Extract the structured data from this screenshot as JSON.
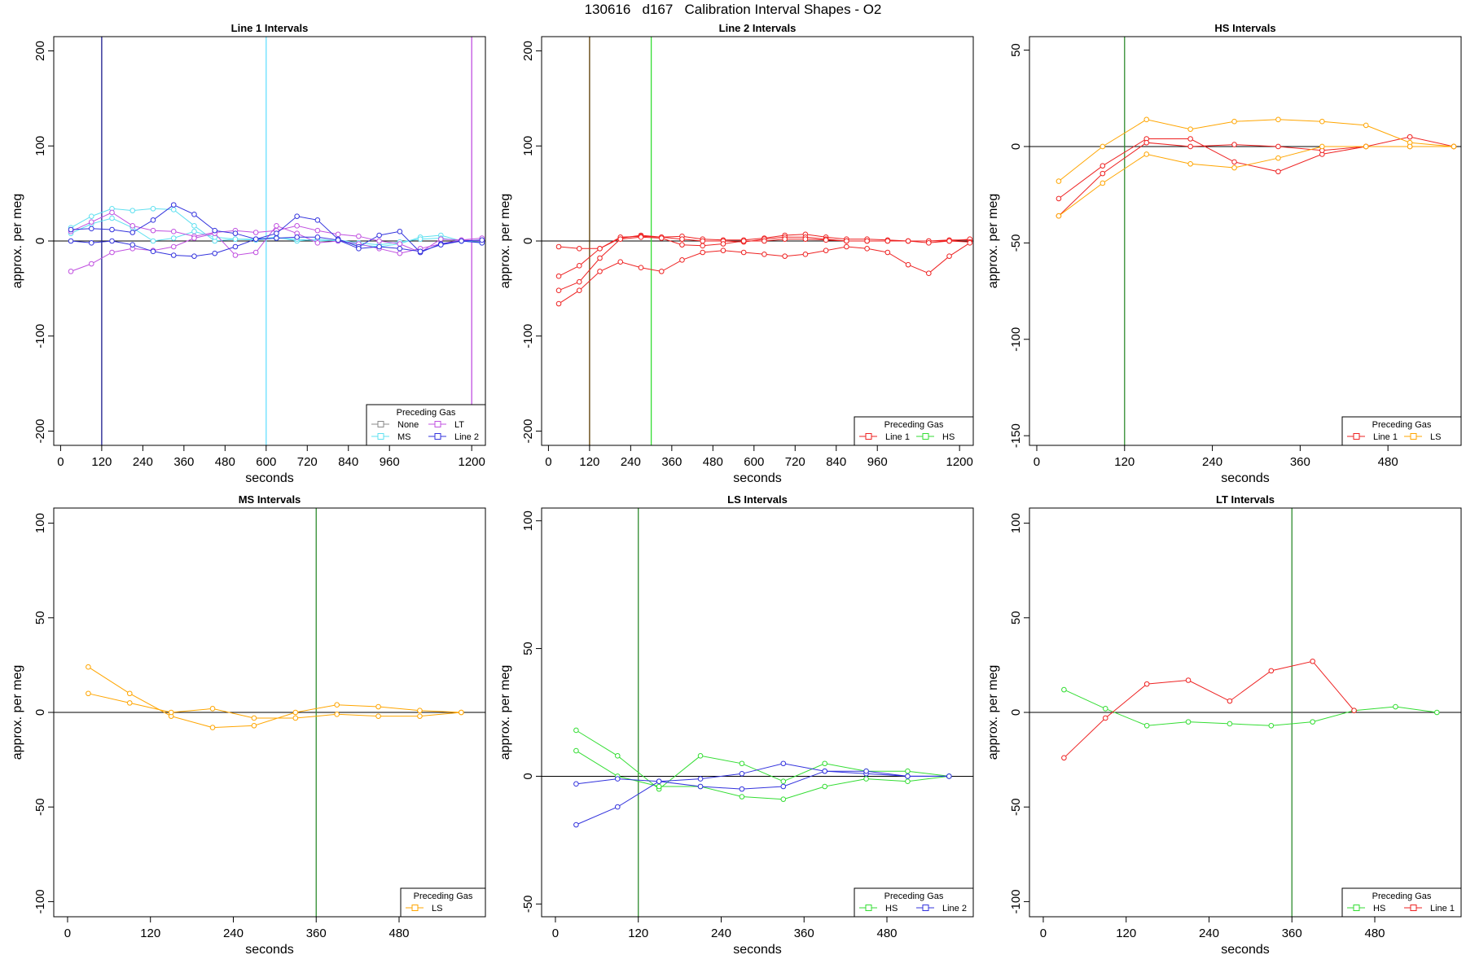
{
  "page": {
    "title": "130616   d167   Calibration Interval Shapes - O2"
  },
  "chart_data": [
    {
      "type": "line",
      "title": "Line 1 Intervals",
      "xlabel": "seconds",
      "ylabel": "approx. per meg",
      "xlim": [
        -20,
        1240
      ],
      "ylim": [
        -215,
        215
      ],
      "xticks": [
        0,
        120,
        240,
        360,
        480,
        600,
        720,
        840,
        960,
        1200
      ],
      "yticks": [
        -200,
        -100,
        0,
        100,
        200
      ],
      "hline": 0,
      "vlines": [
        {
          "x": 120,
          "color": "#1a1a8c"
        },
        {
          "x": 600,
          "color": "#66e0ff"
        },
        {
          "x": 1200,
          "color": "#c050e0"
        }
      ],
      "legend": {
        "title": "Preceding Gas",
        "position": "bottom-right",
        "columns": 2,
        "entries": [
          {
            "name": "None",
            "color": "#888888"
          },
          {
            "name": "LT",
            "color": "#c050e0"
          },
          {
            "name": "MS",
            "color": "#5fe0f0"
          },
          {
            "name": "Line 2",
            "color": "#3333dd"
          }
        ]
      },
      "series": [
        {
          "color": "#5fe0f0",
          "x": [
            30,
            90,
            150,
            210,
            270,
            330,
            390,
            450,
            510,
            570,
            630,
            690,
            750,
            810,
            870,
            930,
            990,
            1050,
            1110,
            1170,
            1230
          ],
          "values": [
            14,
            26,
            34,
            32,
            34,
            33,
            16,
            0,
            2,
            2,
            4,
            0,
            2,
            0,
            -4,
            -6,
            -3,
            4,
            6,
            0,
            -2
          ]
        },
        {
          "color": "#5fe0f0",
          "x": [
            30,
            90,
            150,
            210,
            270,
            330,
            390,
            450,
            510,
            570,
            630,
            690,
            750,
            810,
            870,
            930,
            990,
            1050,
            1110,
            1170,
            1230
          ],
          "values": [
            8,
            18,
            24,
            14,
            0,
            3,
            10,
            4,
            2,
            1,
            3,
            2,
            0,
            1,
            -2,
            -4,
            -1,
            2,
            3,
            0,
            -1
          ]
        },
        {
          "color": "#c050e0",
          "x": [
            30,
            90,
            150,
            210,
            270,
            330,
            390,
            450,
            510,
            570,
            630,
            690,
            750,
            810,
            870,
            930,
            990,
            1050,
            1110,
            1170,
            1230
          ],
          "values": [
            10,
            20,
            30,
            16,
            11,
            10,
            5,
            9,
            11,
            9,
            11,
            16,
            11,
            7,
            5,
            0,
            -3,
            -12,
            2,
            1,
            3
          ]
        },
        {
          "color": "#c050e0",
          "x": [
            30,
            90,
            150,
            210,
            270,
            330,
            390,
            450,
            510,
            570,
            630,
            690,
            750,
            810,
            870,
            930,
            990,
            1050,
            1110,
            1170,
            1230
          ],
          "values": [
            -32,
            -24,
            -12,
            -8,
            -10,
            -6,
            3,
            8,
            -15,
            -12,
            16,
            8,
            -2,
            0,
            -3,
            -8,
            -13,
            -8,
            -3,
            1,
            0
          ]
        },
        {
          "color": "#3333dd",
          "x": [
            30,
            90,
            150,
            210,
            270,
            330,
            390,
            450,
            510,
            570,
            630,
            690,
            750,
            810,
            870,
            930,
            990,
            1050,
            1110,
            1170,
            1230
          ],
          "values": [
            12,
            13,
            12,
            9,
            22,
            38,
            28,
            11,
            8,
            2,
            8,
            26,
            22,
            2,
            -6,
            6,
            10,
            -12,
            -3,
            0,
            -2
          ]
        },
        {
          "color": "#3333dd",
          "x": [
            30,
            90,
            150,
            210,
            270,
            330,
            390,
            450,
            510,
            570,
            630,
            690,
            750,
            810,
            870,
            930,
            990,
            1050,
            1110,
            1170,
            1230
          ],
          "values": [
            0,
            -2,
            0,
            -4,
            -11,
            -15,
            -16,
            -13,
            -6,
            2,
            3,
            4,
            4,
            1,
            -8,
            -6,
            -8,
            -11,
            -4,
            0,
            1
          ]
        }
      ]
    },
    {
      "type": "line",
      "title": "Line 2 Intervals",
      "xlabel": "seconds",
      "ylabel": "approx. per meg",
      "xlim": [
        -20,
        1240
      ],
      "ylim": [
        -215,
        215
      ],
      "xticks": [
        0,
        120,
        240,
        360,
        480,
        600,
        720,
        840,
        960,
        1200
      ],
      "yticks": [
        -200,
        -100,
        0,
        100,
        200
      ],
      "hline": 0,
      "vlines": [
        {
          "x": 120,
          "color": "#5a3a00"
        },
        {
          "x": 300,
          "color": "#33dd33"
        }
      ],
      "legend": {
        "title": "Preceding Gas",
        "position": "bottom-right",
        "columns": 2,
        "entries": [
          {
            "name": "Line 1",
            "color": "#ee2222"
          },
          {
            "name": "HS",
            "color": "#33dd33"
          }
        ]
      },
      "series": [
        {
          "color": "#ee2222",
          "x": [
            30,
            90,
            150,
            210,
            270,
            330,
            390,
            450,
            510,
            570,
            630,
            690,
            750,
            810,
            870,
            930,
            990,
            1050,
            1110,
            1170,
            1230
          ],
          "values": [
            -6,
            -8,
            -8,
            3,
            6,
            4,
            5,
            2,
            1,
            1,
            3,
            6,
            7,
            4,
            2,
            2,
            1,
            0,
            0,
            1,
            1
          ]
        },
        {
          "color": "#ee2222",
          "x": [
            30,
            90,
            150,
            210,
            270,
            330,
            390,
            450,
            510,
            570,
            630,
            690,
            750,
            810,
            870,
            930,
            990,
            1050,
            1110,
            1170,
            1230
          ],
          "values": [
            -37,
            -26,
            -8,
            4,
            5,
            4,
            2,
            0,
            0,
            -1,
            2,
            4,
            4,
            2,
            0,
            0,
            0,
            0,
            0,
            0,
            2
          ]
        },
        {
          "color": "#ee2222",
          "x": [
            30,
            90,
            150,
            210,
            270,
            330,
            390,
            450,
            510,
            570,
            630,
            690,
            750,
            810,
            870,
            930,
            990,
            1050,
            1110,
            1170,
            1230
          ],
          "values": [
            -52,
            -43,
            -18,
            2,
            4,
            3,
            -4,
            -5,
            -3,
            0,
            0,
            2,
            2,
            1,
            0,
            0,
            0,
            0,
            -2,
            0,
            -1
          ]
        },
        {
          "color": "#ee2222",
          "x": [
            30,
            90,
            150,
            210,
            270,
            330,
            390,
            450,
            510,
            570,
            630,
            690,
            750,
            810,
            870,
            930,
            990,
            1050,
            1110,
            1170,
            1230
          ],
          "values": [
            -66,
            -52,
            -32,
            -22,
            -28,
            -32,
            -20,
            -12,
            -10,
            -12,
            -14,
            -16,
            -14,
            -10,
            -6,
            -8,
            -12,
            -25,
            -34,
            -16,
            -2
          ]
        }
      ]
    },
    {
      "type": "line",
      "title": "HS Intervals",
      "xlabel": "seconds",
      "ylabel": "approx. per meg",
      "xlim": [
        -10,
        580
      ],
      "ylim": [
        -155,
        57
      ],
      "xticks": [
        0,
        120,
        240,
        360,
        480
      ],
      "yticks": [
        -150,
        -100,
        -50,
        0,
        50
      ],
      "hline": 0,
      "vlines": [
        {
          "x": 120,
          "color": "#2e8b2e"
        }
      ],
      "legend": {
        "title": "Preceding Gas",
        "position": "bottom-right",
        "columns": 2,
        "entries": [
          {
            "name": "Line 1",
            "color": "#ee2222"
          },
          {
            "name": "LS",
            "color": "#ffa500"
          }
        ]
      },
      "series": [
        {
          "color": "#ee2222",
          "x": [
            30,
            90,
            150,
            210,
            270,
            330,
            390,
            450,
            510,
            570
          ],
          "values": [
            -27,
            -10,
            4,
            4,
            -8,
            -13,
            -4,
            0,
            5,
            0
          ]
        },
        {
          "color": "#ee2222",
          "x": [
            30,
            90,
            150,
            210,
            270,
            330,
            390,
            450,
            510,
            570
          ],
          "values": [
            -36,
            -14,
            2,
            0,
            1,
            0,
            -2,
            0,
            0,
            0
          ]
        },
        {
          "color": "#ffa500",
          "x": [
            30,
            90,
            150,
            210,
            270,
            330,
            390,
            450,
            510,
            570
          ],
          "values": [
            -18,
            0,
            14,
            9,
            13,
            14,
            13,
            11,
            2,
            0
          ]
        },
        {
          "color": "#ffa500",
          "x": [
            30,
            90,
            150,
            210,
            270,
            330,
            390,
            450,
            510,
            570
          ],
          "values": [
            -36,
            -19,
            -4,
            -9,
            -11,
            -6,
            0,
            0,
            0,
            0
          ]
        }
      ]
    },
    {
      "type": "line",
      "title": "MS Intervals",
      "xlabel": "seconds",
      "ylabel": "approx. per meg",
      "xlim": [
        -20,
        605
      ],
      "ylim": [
        -108,
        108
      ],
      "xticks": [
        0,
        120,
        240,
        360,
        480
      ],
      "yticks": [
        -100,
        -50,
        0,
        50,
        100
      ],
      "hline": 0,
      "vlines": [
        {
          "x": 360,
          "color": "#2e8b2e"
        }
      ],
      "legend": {
        "title": "Preceding Gas",
        "position": "bottom-right",
        "columns": 1,
        "entries": [
          {
            "name": "LS",
            "color": "#ffa500"
          }
        ]
      },
      "series": [
        {
          "color": "#ffa500",
          "x": [
            30,
            90,
            150,
            210,
            270,
            330,
            390,
            450,
            510,
            570
          ],
          "values": [
            24,
            10,
            -2,
            -8,
            -7,
            0,
            4,
            3,
            1,
            0
          ]
        },
        {
          "color": "#ffa500",
          "x": [
            30,
            90,
            150,
            210,
            270,
            330,
            390,
            450,
            510,
            570
          ],
          "values": [
            10,
            5,
            0,
            2,
            -3,
            -3,
            -1,
            -2,
            -2,
            0
          ]
        }
      ]
    },
    {
      "type": "line",
      "title": "LS Intervals",
      "xlabel": "seconds",
      "ylabel": "approx. per meg",
      "xlim": [
        -20,
        605
      ],
      "ylim": [
        -55,
        105
      ],
      "xticks": [
        0,
        120,
        240,
        360,
        480
      ],
      "yticks": [
        -50,
        0,
        50,
        100
      ],
      "hline": 0,
      "vlines": [
        {
          "x": 120,
          "color": "#2e8b2e"
        }
      ],
      "legend": {
        "title": "Preceding Gas",
        "position": "bottom-right",
        "columns": 2,
        "entries": [
          {
            "name": "HS",
            "color": "#33dd33"
          },
          {
            "name": "Line 2",
            "color": "#3333dd"
          }
        ]
      },
      "series": [
        {
          "color": "#33dd33",
          "x": [
            30,
            90,
            150,
            210,
            270,
            330,
            390,
            450,
            510,
            570
          ],
          "values": [
            18,
            8,
            -5,
            8,
            5,
            -2,
            5,
            2,
            2,
            0
          ]
        },
        {
          "color": "#33dd33",
          "x": [
            30,
            90,
            150,
            210,
            270,
            330,
            390,
            450,
            510,
            570
          ],
          "values": [
            10,
            0,
            -4,
            -4,
            -8,
            -9,
            -4,
            -1,
            -2,
            0
          ]
        },
        {
          "color": "#3333dd",
          "x": [
            30,
            90,
            150,
            210,
            270,
            330,
            390,
            450,
            510,
            570
          ],
          "values": [
            -3,
            -1,
            -2,
            -1,
            1,
            5,
            2,
            1,
            0,
            0
          ]
        },
        {
          "color": "#3333dd",
          "x": [
            30,
            90,
            150,
            210,
            270,
            330,
            390,
            450,
            510,
            570
          ],
          "values": [
            -19,
            -12,
            -2,
            -4,
            -5,
            -4,
            2,
            2,
            0,
            0
          ]
        }
      ]
    },
    {
      "type": "line",
      "title": "LT Intervals",
      "xlabel": "seconds",
      "ylabel": "approx. per meg",
      "xlim": [
        -20,
        605
      ],
      "ylim": [
        -108,
        108
      ],
      "xticks": [
        0,
        120,
        240,
        360,
        480
      ],
      "yticks": [
        -100,
        -50,
        0,
        50,
        100
      ],
      "hline": 0,
      "vlines": [
        {
          "x": 360,
          "color": "#2e8b2e"
        }
      ],
      "legend": {
        "title": "Preceding Gas",
        "position": "bottom-right",
        "columns": 2,
        "entries": [
          {
            "name": "HS",
            "color": "#33dd33"
          },
          {
            "name": "Line 1",
            "color": "#ee2222"
          }
        ]
      },
      "series": [
        {
          "color": "#33dd33",
          "x": [
            30,
            90,
            150,
            210,
            270,
            330,
            390,
            450,
            510,
            570
          ],
          "values": [
            12,
            2,
            -7,
            -5,
            -6,
            -7,
            -5,
            1,
            3,
            0
          ]
        },
        {
          "color": "#ee2222",
          "x": [
            30,
            90,
            150,
            210,
            270,
            330,
            390,
            450
          ],
          "values": [
            -24,
            -3,
            15,
            17,
            6,
            22,
            27,
            1
          ]
        }
      ]
    }
  ]
}
